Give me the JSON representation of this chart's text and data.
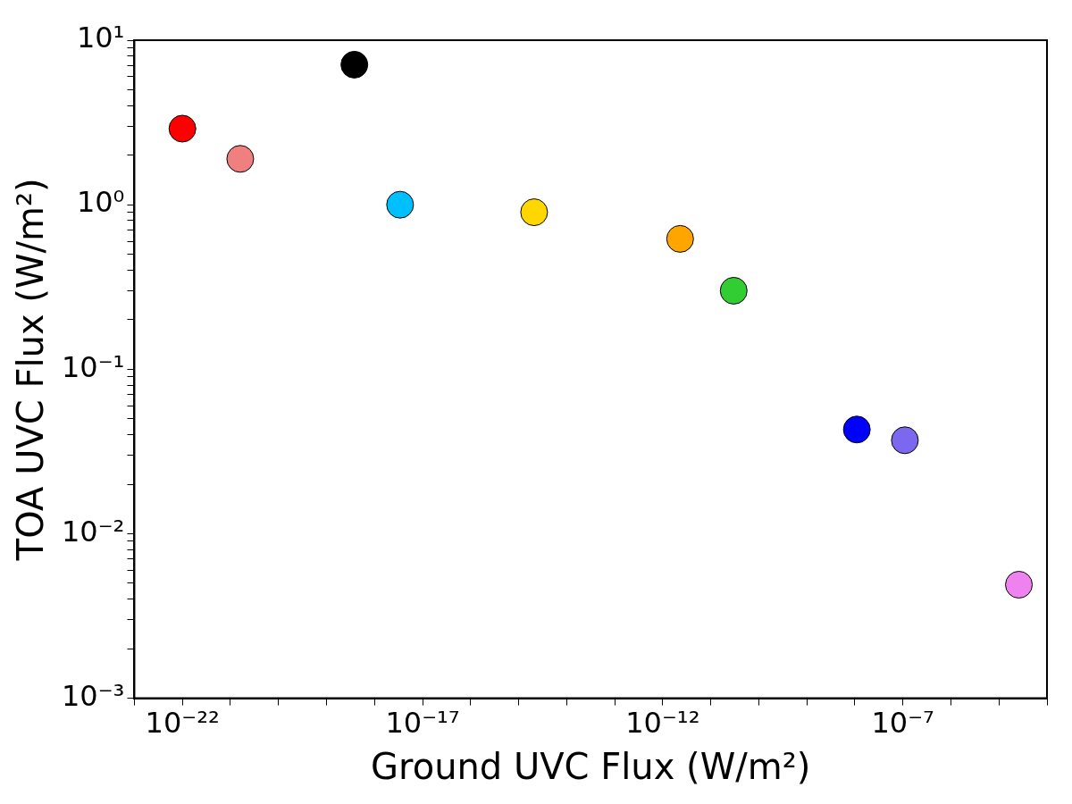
{
  "chart_data": {
    "type": "scatter",
    "xlabel": "Ground UVC Flux (W/m²)",
    "ylabel": "TOA UVC Flux (W/m²)",
    "log": "xy",
    "grid": false,
    "legend": false,
    "marker": "circle",
    "xlim": [
      1e-23,
      0.0001
    ],
    "ylim": [
      0.001,
      10
    ],
    "xticks": [
      {
        "value": 1e-23,
        "label": null
      },
      {
        "value": 1e-22,
        "label": "10⁻²²"
      },
      {
        "value": 1e-21,
        "label": null
      },
      {
        "value": 1e-20,
        "label": null
      },
      {
        "value": 1e-19,
        "label": null
      },
      {
        "value": 1e-18,
        "label": null
      },
      {
        "value": 1e-17,
        "label": "10⁻¹⁷"
      },
      {
        "value": 1e-16,
        "label": null
      },
      {
        "value": 1e-15,
        "label": null
      },
      {
        "value": 1e-14,
        "label": null
      },
      {
        "value": 1e-13,
        "label": null
      },
      {
        "value": 1e-12,
        "label": "10⁻¹²"
      },
      {
        "value": 1e-11,
        "label": null
      },
      {
        "value": 1e-10,
        "label": null
      },
      {
        "value": 1e-09,
        "label": null
      },
      {
        "value": 1e-08,
        "label": null
      },
      {
        "value": 1e-07,
        "label": "10⁻⁷"
      },
      {
        "value": 1e-06,
        "label": null
      },
      {
        "value": 1e-05,
        "label": null
      },
      {
        "value": 0.0001,
        "label": null
      }
    ],
    "yticks": [
      {
        "value": 0.001,
        "label": "10⁻³"
      },
      {
        "value": 0.002,
        "label": null
      },
      {
        "value": 0.003,
        "label": null
      },
      {
        "value": 0.004,
        "label": null
      },
      {
        "value": 0.005,
        "label": null
      },
      {
        "value": 0.006,
        "label": null
      },
      {
        "value": 0.007,
        "label": null
      },
      {
        "value": 0.008,
        "label": null
      },
      {
        "value": 0.009,
        "label": null
      },
      {
        "value": 0.01,
        "label": "10⁻²"
      },
      {
        "value": 0.02,
        "label": null
      },
      {
        "value": 0.03,
        "label": null
      },
      {
        "value": 0.04,
        "label": null
      },
      {
        "value": 0.05,
        "label": null
      },
      {
        "value": 0.06,
        "label": null
      },
      {
        "value": 0.07,
        "label": null
      },
      {
        "value": 0.08,
        "label": null
      },
      {
        "value": 0.09,
        "label": null
      },
      {
        "value": 0.1,
        "label": "10⁻¹"
      },
      {
        "value": 0.2,
        "label": null
      },
      {
        "value": 0.3,
        "label": null
      },
      {
        "value": 0.4,
        "label": null
      },
      {
        "value": 0.5,
        "label": null
      },
      {
        "value": 0.6,
        "label": null
      },
      {
        "value": 0.7,
        "label": null
      },
      {
        "value": 0.8,
        "label": null
      },
      {
        "value": 0.9,
        "label": null
      },
      {
        "value": 1,
        "label": "10⁰"
      },
      {
        "value": 2,
        "label": null
      },
      {
        "value": 3,
        "label": null
      },
      {
        "value": 4,
        "label": null
      },
      {
        "value": 5,
        "label": null
      },
      {
        "value": 6,
        "label": null
      },
      {
        "value": 7,
        "label": null
      },
      {
        "value": 8,
        "label": null
      },
      {
        "value": 9,
        "label": null
      },
      {
        "value": 10,
        "label": "10¹"
      }
    ],
    "series": [
      {
        "x": [
          1e-22,
          1.6e-21,
          3.8e-19,
          3.4e-18,
          2.1e-15,
          2.3e-12,
          3e-11,
          1.1e-08,
          1.1e-07,
          2.6e-05
        ],
        "values": [
          2.9,
          1.9,
          7.1,
          1.0,
          0.9,
          0.62,
          0.3,
          0.043,
          0.037,
          0.0049
        ],
        "colors": [
          "#ff0000",
          "#f08080",
          "#000000",
          "#00bfff",
          "#ffd700",
          "#ffa500",
          "#32cd32",
          "#0000ff",
          "#7b68ee",
          "#ee82ee"
        ]
      }
    ]
  }
}
